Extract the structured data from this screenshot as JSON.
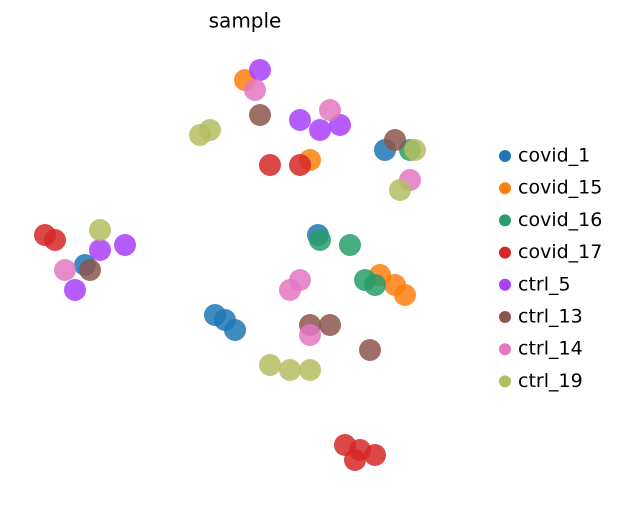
{
  "chart_data": {
    "type": "scatter",
    "title": "sample",
    "xlim": [
      0,
      450
    ],
    "ylim": [
      0,
      430
    ],
    "series": [
      {
        "name": "covid_1",
        "color": "#1f77b4",
        "x": [
          205,
          195,
          215,
          298,
          365,
          65
        ],
        "y": [
          160,
          165,
          150,
          245,
          330,
          215
        ]
      },
      {
        "name": "covid_15",
        "color": "#ff7f0e",
        "x": [
          375,
          385,
          360,
          290,
          225
        ],
        "y": [
          195,
          185,
          205,
          320,
          400
        ]
      },
      {
        "name": "covid_16",
        "color": "#279e68",
        "x": [
          355,
          345,
          300,
          330,
          390
        ],
        "y": [
          195,
          200,
          240,
          235,
          330
        ]
      },
      {
        "name": "covid_17",
        "color": "#d62728",
        "x": [
          340,
          325,
          355,
          335,
          250,
          280,
          25,
          35
        ],
        "y": [
          30,
          35,
          25,
          20,
          315,
          315,
          245,
          240
        ]
      },
      {
        "name": "ctrl_5",
        "color": "#aa40fc",
        "x": [
          240,
          280,
          300,
          320,
          55,
          80,
          105
        ],
        "y": [
          410,
          360,
          350,
          355,
          190,
          230,
          235
        ]
      },
      {
        "name": "ctrl_13",
        "color": "#8c564b",
        "x": [
          240,
          375,
          290,
          310,
          350,
          70
        ],
        "y": [
          365,
          340,
          155,
          155,
          130,
          210
        ]
      },
      {
        "name": "ctrl_14",
        "color": "#e377c2",
        "x": [
          235,
          270,
          280,
          290,
          310,
          390,
          45
        ],
        "y": [
          390,
          190,
          200,
          145,
          370,
          300,
          210
        ]
      },
      {
        "name": "ctrl_19",
        "color": "#b5bd61",
        "x": [
          190,
          180,
          270,
          250,
          290,
          395,
          80,
          380
        ],
        "y": [
          350,
          345,
          110,
          115,
          110,
          330,
          250,
          290
        ]
      }
    ]
  }
}
